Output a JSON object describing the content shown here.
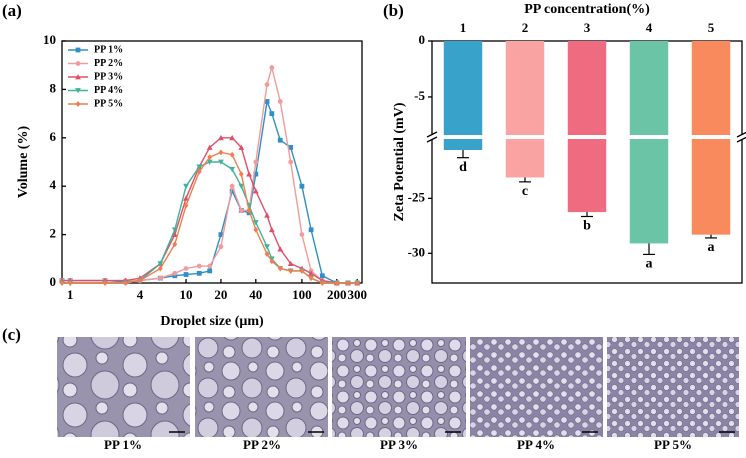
{
  "chart_data": [
    {
      "type": "line",
      "panel_label": "(a)",
      "xlabel": "Droplet size (μm)",
      "ylabel": "Volume (%)",
      "xscale": "log",
      "xlim": [
        0.85,
        330
      ],
      "xticks": [
        1,
        4,
        10,
        20,
        40,
        100,
        200,
        300
      ],
      "ylim": [
        0,
        10
      ],
      "yticks": [
        0,
        2,
        4,
        6,
        8,
        10
      ],
      "legend": "upper left",
      "x": [
        0.85,
        1,
        2,
        3,
        4,
        6,
        8,
        10,
        13,
        16,
        20,
        25,
        30,
        35,
        40,
        50,
        55,
        65,
        80,
        100,
        120,
        150,
        200,
        250,
        300
      ],
      "series": [
        {
          "name": "PP 1%",
          "color": "#2f8fc6",
          "marker": "square",
          "values": [
            0.1,
            0.1,
            0.1,
            0.05,
            0.1,
            0.2,
            0.3,
            0.35,
            0.4,
            0.5,
            2,
            3.8,
            3,
            2.9,
            4.5,
            7.5,
            7,
            5.9,
            5.6,
            4,
            2.2,
            0.3,
            0,
            0,
            0
          ]
        },
        {
          "name": "PP 2%",
          "color": "#f39a9a",
          "marker": "circle",
          "values": [
            0.1,
            0.1,
            0.1,
            0.1,
            0.1,
            0.2,
            0.4,
            0.6,
            0.7,
            0.7,
            1.5,
            4,
            3,
            3,
            5,
            8.2,
            8.9,
            7.5,
            5,
            2,
            0.5,
            0.1,
            0,
            0,
            0
          ]
        },
        {
          "name": "PP 3%",
          "color": "#e0506a",
          "marker": "triangle",
          "values": [
            0.1,
            0.1,
            0.1,
            0.1,
            0.2,
            0.8,
            2,
            3.5,
            4.8,
            5.6,
            6,
            6,
            5.6,
            4.5,
            3.8,
            2.8,
            2.2,
            1.4,
            0.8,
            0.6,
            0.4,
            0.1,
            0,
            0,
            0
          ]
        },
        {
          "name": "PP 4%",
          "color": "#3fb39b",
          "marker": "triangle-down",
          "values": [
            0,
            0,
            0,
            0,
            0.1,
            0.8,
            2.2,
            4,
            4.8,
            5,
            5,
            4.7,
            4,
            3.2,
            2.5,
            1.5,
            1,
            0.6,
            0.5,
            0.5,
            0.2,
            0,
            0,
            0,
            0
          ]
        },
        {
          "name": "PP 5%",
          "color": "#f07e4e",
          "marker": "diamond",
          "values": [
            0,
            0,
            0,
            0,
            0.1,
            0.6,
            1.6,
            3.2,
            4.6,
            5.2,
            5.4,
            5.3,
            4.5,
            3,
            2.2,
            1.2,
            0.9,
            0.6,
            0.5,
            0.5,
            0.2,
            0,
            0,
            0,
            0
          ]
        }
      ]
    },
    {
      "type": "bar",
      "panel_label": "(b)",
      "xlabel": "PP concentration(%)",
      "ylabel": "Zeta Potential (mV)",
      "categories": [
        "1",
        "2",
        "3",
        "4",
        "5"
      ],
      "values": [
        -20.6,
        -23.1,
        -26.25,
        -29.1,
        -28.3
      ],
      "errors": [
        0.7,
        0.4,
        0.4,
        1.0,
        0.3
      ],
      "annotations": [
        "d",
        "c",
        "b",
        "a",
        "a"
      ],
      "colors": [
        "#38a2cb",
        "#f9a3a3",
        "#ee6b80",
        "#6cc4a7",
        "#f88a5e"
      ],
      "ylim": [
        -32.7,
        0
      ],
      "y_break": [
        -19.6,
        -8.4
      ],
      "yticks": [
        0,
        -5,
        -25,
        -30
      ]
    }
  ],
  "micrographs": {
    "panel_label": "(c)",
    "labels": [
      "PP 1%",
      "PP 2%",
      "PP 3%",
      "PP 4%",
      "PP 5%"
    ]
  }
}
